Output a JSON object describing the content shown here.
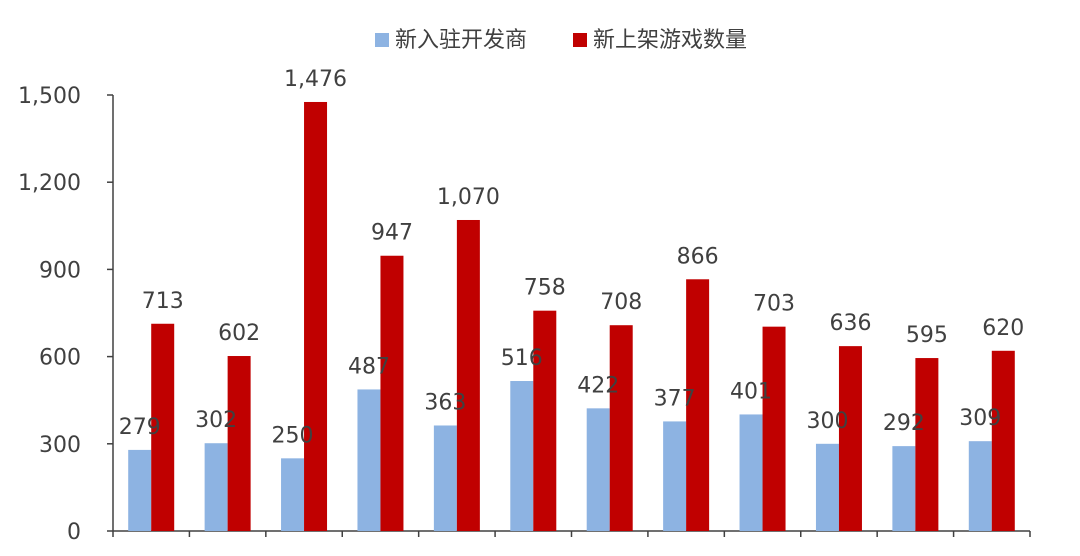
{
  "chart_data": {
    "type": "bar",
    "title": "",
    "xlabel": "",
    "ylabel": "",
    "categories": [
      "",
      "",
      "",
      "",
      "",
      "",
      "",
      "",
      "",
      "",
      "",
      ""
    ],
    "ylim": [
      0,
      1500
    ],
    "yticks": [
      0,
      300,
      600,
      900,
      1200,
      1500
    ],
    "ytick_labels": [
      "0",
      "300",
      "600",
      "900",
      "1,200",
      "1,500"
    ],
    "legend_position": "top-center",
    "grid": false,
    "series": [
      {
        "name": "新入驻开发商",
        "color": "#8DB3E2",
        "values": [
          279,
          302,
          250,
          487,
          363,
          516,
          422,
          377,
          401,
          300,
          292,
          309
        ],
        "labels": [
          "279",
          "302",
          "250",
          "487",
          "363",
          "516",
          "422",
          "377",
          "401",
          "300",
          "292",
          "309"
        ]
      },
      {
        "name": "新上架游戏数量",
        "color": "#C00000",
        "values": [
          713,
          602,
          1476,
          947,
          1070,
          758,
          708,
          866,
          703,
          636,
          595,
          620
        ],
        "labels": [
          "713",
          "602",
          "1,476",
          "947",
          "1,070",
          "758",
          "708",
          "866",
          "703",
          "636",
          "595",
          "620"
        ]
      }
    ]
  }
}
